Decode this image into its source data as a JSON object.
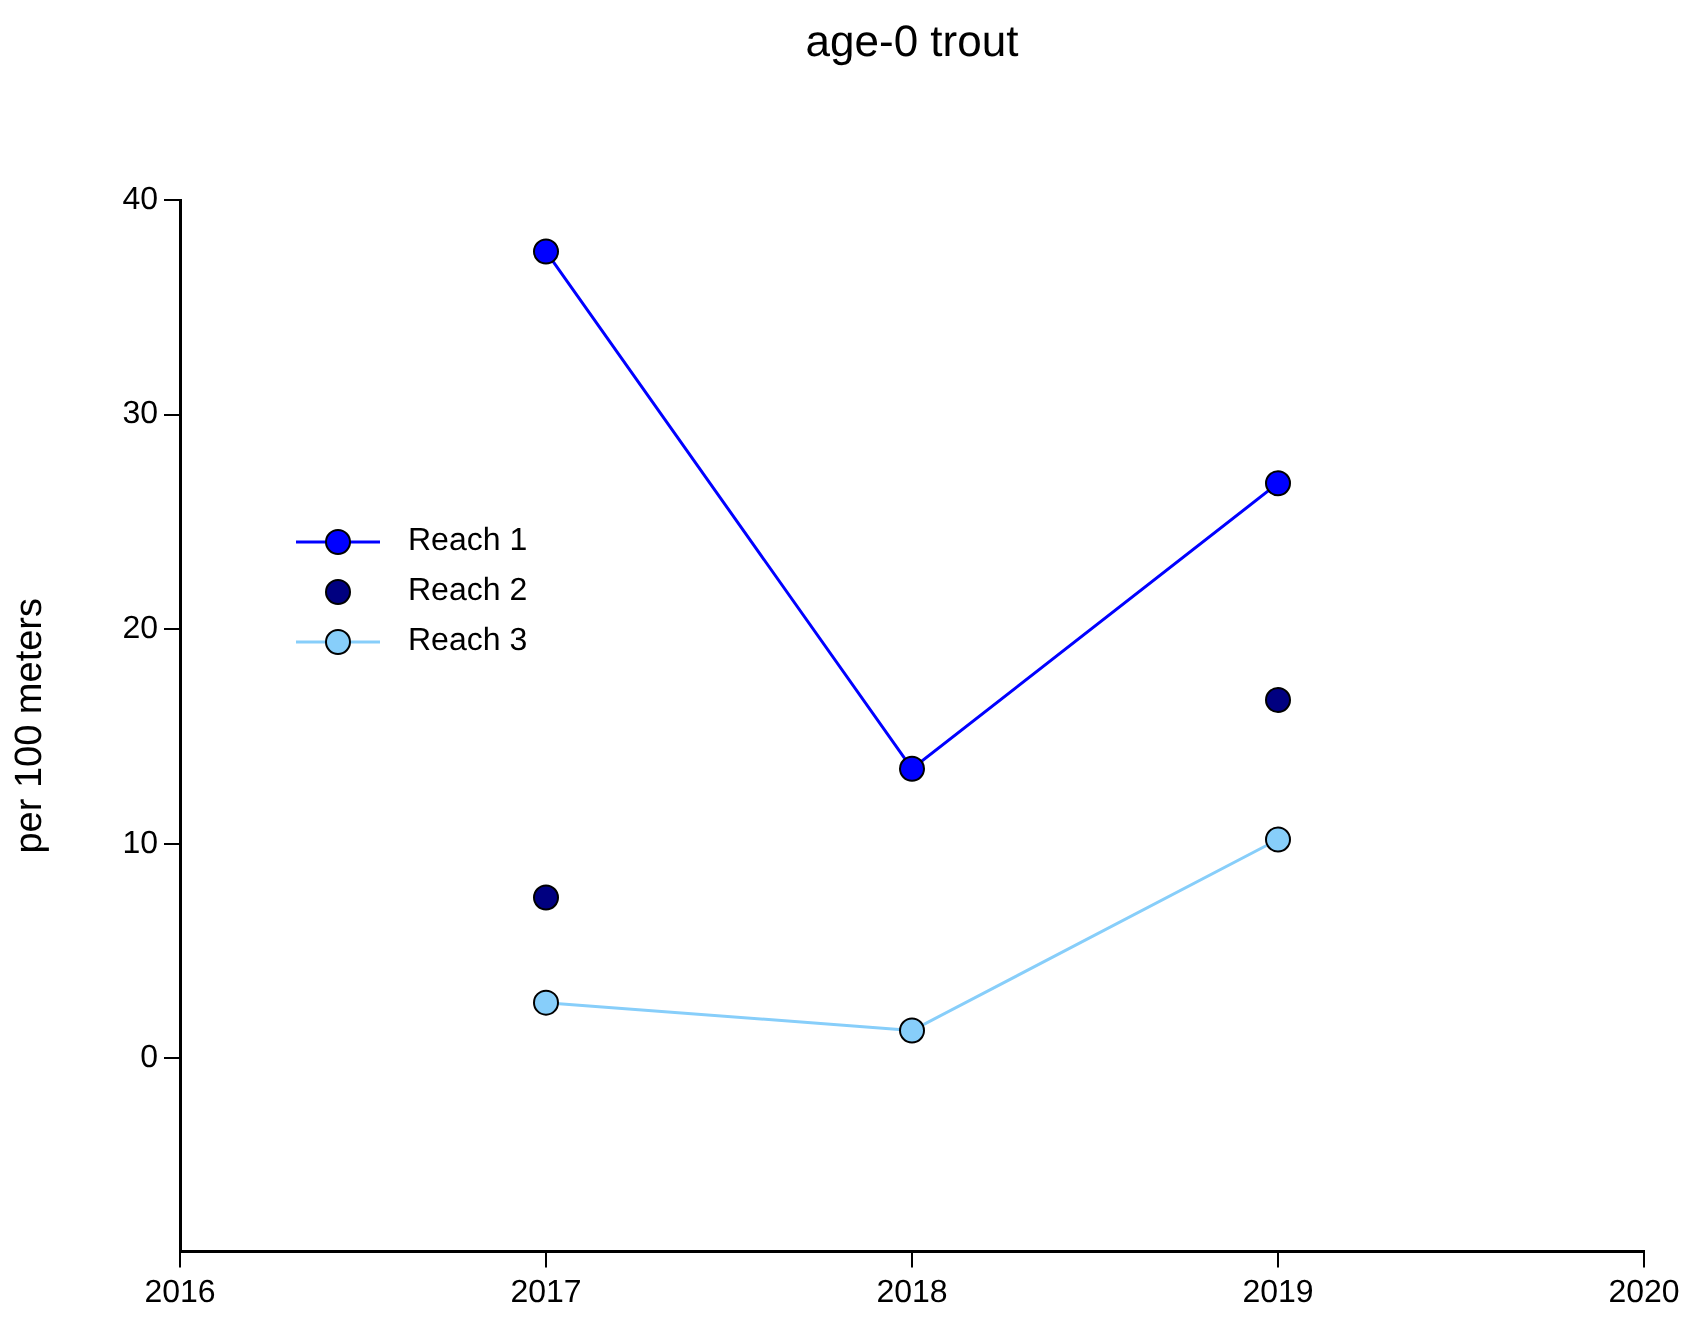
{
  "chart_data": {
    "type": "line",
    "title": "age-0 trout",
    "ylabel": "per 100 meters",
    "x": [
      2017,
      2018,
      2019
    ],
    "series": [
      {
        "name": "Reach 1",
        "type": "line",
        "color": "#0000ff",
        "values": [
          37.6,
          13.5,
          26.8
        ]
      },
      {
        "name": "Reach 2",
        "type": "scatter",
        "color": "#000080",
        "values": [
          7.5,
          null,
          16.7
        ]
      },
      {
        "name": "Reach 3",
        "type": "line",
        "color": "#87cefa",
        "values": [
          2.6,
          1.3,
          10.2
        ]
      }
    ],
    "xlim": [
      2016,
      2020
    ],
    "xticks": [
      2016,
      2017,
      2018,
      2019,
      2020
    ],
    "ylim": [
      -9,
      40
    ],
    "yticks": [
      0,
      10,
      20,
      30,
      40
    ],
    "grid": false,
    "legend": "left",
    "marker": "circle"
  }
}
